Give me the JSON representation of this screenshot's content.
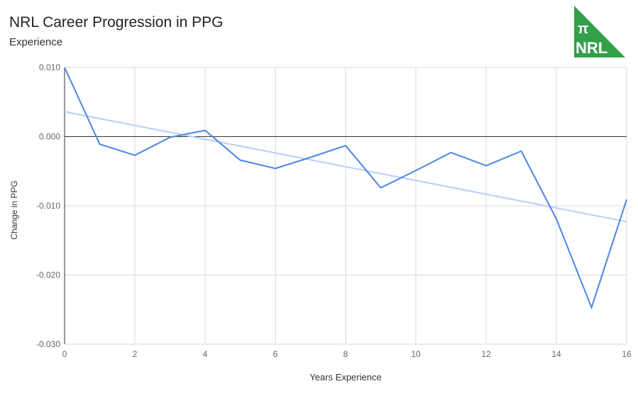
{
  "chart_data": {
    "type": "line",
    "title": "NRL Career Progression in PPG",
    "subtitle": "Experience",
    "xlabel": "Years Experience",
    "ylabel": "Change in PPG",
    "xlim": [
      0,
      16
    ],
    "ylim": [
      -0.03,
      0.01
    ],
    "xticks": [
      "0",
      "2",
      "4",
      "6",
      "8",
      "10",
      "12",
      "14",
      "16"
    ],
    "yticks": [
      "0.010",
      "0.000",
      "-0.010",
      "-0.020",
      "-0.030"
    ],
    "grid": true,
    "legend": "none",
    "x": [
      0,
      1,
      2,
      3,
      4,
      5,
      6,
      7,
      8,
      9,
      10,
      11,
      12,
      13,
      14,
      15,
      16
    ],
    "series": [
      {
        "values": [
          0.01,
          -0.0011,
          -0.0027,
          -0.0001,
          0.0009,
          -0.0034,
          -0.0046,
          -0.003,
          -0.0013,
          -0.0074,
          -0.0049,
          -0.0023,
          -0.0042,
          -0.0021,
          -0.0119,
          -0.0247,
          -0.0091
        ],
        "color": "#4a86e8"
      }
    ],
    "trendline": {
      "start": [
        0,
        0.0036
      ],
      "end": [
        16,
        -0.0123
      ],
      "color": "#b6d0f7"
    }
  },
  "logo": {
    "text_top": "π",
    "text_bottom": "NRL",
    "color": "#34a04a"
  }
}
